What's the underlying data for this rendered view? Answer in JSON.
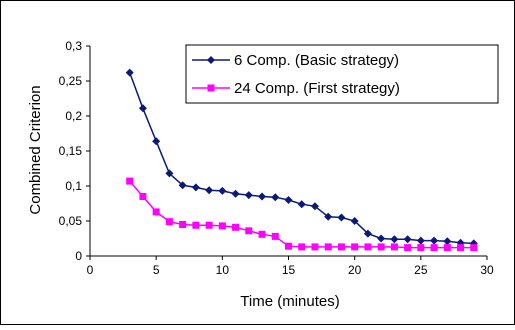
{
  "chart_data": {
    "type": "line",
    "title": "",
    "xlabel": "Time (minutes)",
    "ylabel": "Combined Criterion",
    "xlim": [
      0,
      30
    ],
    "ylim": [
      0,
      0.3
    ],
    "x_ticks": [
      0,
      5,
      10,
      15,
      20,
      25,
      30
    ],
    "y_ticks": [
      0,
      0.05,
      0.1,
      0.15,
      0.2,
      0.25,
      0.3
    ],
    "x_tick_labels": [
      "0",
      "5",
      "10",
      "15",
      "20",
      "25",
      "30"
    ],
    "y_tick_labels": [
      "0",
      "0,05",
      "0,1",
      "0,15",
      "0,2",
      "0,25",
      "0,3"
    ],
    "grid": false,
    "legend_position": "top-right",
    "series": [
      {
        "name": "6 Comp. (Basic strategy)",
        "color": "#0a1a7a",
        "marker": "diamond",
        "x": [
          3,
          4,
          5,
          6,
          7,
          8,
          9,
          10,
          11,
          12,
          13,
          14,
          15,
          16,
          17,
          18,
          19,
          20,
          21,
          22,
          23,
          24,
          25,
          26,
          27,
          28,
          29
        ],
        "y": [
          0.262,
          0.211,
          0.164,
          0.118,
          0.101,
          0.098,
          0.094,
          0.093,
          0.089,
          0.087,
          0.085,
          0.084,
          0.08,
          0.074,
          0.071,
          0.056,
          0.055,
          0.05,
          0.032,
          0.025,
          0.024,
          0.024,
          0.022,
          0.022,
          0.021,
          0.019,
          0.018
        ]
      },
      {
        "name": "24  Comp. (First strategy)",
        "color": "#ff00ff",
        "marker": "square",
        "x": [
          3,
          4,
          5,
          6,
          7,
          8,
          9,
          10,
          11,
          12,
          13,
          14,
          15,
          16,
          17,
          18,
          19,
          20,
          21,
          22,
          23,
          24,
          25,
          26,
          27,
          28,
          29
        ],
        "y": [
          0.107,
          0.085,
          0.063,
          0.049,
          0.045,
          0.044,
          0.044,
          0.043,
          0.041,
          0.036,
          0.031,
          0.028,
          0.014,
          0.013,
          0.013,
          0.013,
          0.013,
          0.013,
          0.013,
          0.013,
          0.013,
          0.012,
          0.012,
          0.012,
          0.012,
          0.012,
          0.012
        ]
      }
    ]
  }
}
